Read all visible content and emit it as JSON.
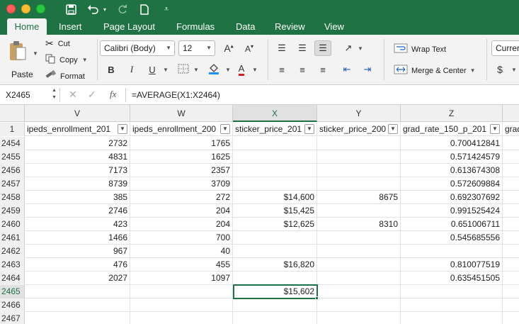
{
  "ribbon_tabs": [
    "Home",
    "Insert",
    "Page Layout",
    "Formulas",
    "Data",
    "Review",
    "View"
  ],
  "clipboard": {
    "paste": "Paste",
    "cut": "Cut",
    "copy": "Copy",
    "format": "Format"
  },
  "font": {
    "name": "Calibri (Body)",
    "size": "12"
  },
  "alignment": {
    "wrap_text": "Wrap Text",
    "merge_center": "Merge & Center"
  },
  "number": {
    "format": "Curren",
    "currency_symbol": "$"
  },
  "formula_bar": {
    "name_box": "X2465",
    "fx": "fx",
    "formula": "=AVERAGE(X1:X2464)"
  },
  "columns": [
    "V",
    "W",
    "X",
    "Y",
    "Z"
  ],
  "header_row": {
    "row_number": "1",
    "cells": [
      "ipeds_enrollment_201",
      "ipeds_enrollment_200",
      "sticker_price_201",
      "sticker_price_200",
      "grad_rate_150_p_201",
      "grad"
    ]
  },
  "rows": [
    {
      "num": "2454",
      "cells": [
        "2732",
        "1765",
        "",
        "",
        "0.700412841"
      ]
    },
    {
      "num": "2455",
      "cells": [
        "4831",
        "1625",
        "",
        "",
        "0.571424579"
      ]
    },
    {
      "num": "2456",
      "cells": [
        "7173",
        "2357",
        "",
        "",
        "0.613674308"
      ]
    },
    {
      "num": "2457",
      "cells": [
        "8739",
        "3709",
        "",
        "",
        "0.572609884"
      ]
    },
    {
      "num": "2458",
      "cells": [
        "385",
        "272",
        "$14,600",
        "8675",
        "0.692307692"
      ]
    },
    {
      "num": "2459",
      "cells": [
        "2746",
        "204",
        "$15,425",
        "",
        "0.991525424"
      ]
    },
    {
      "num": "2460",
      "cells": [
        "423",
        "204",
        "$12,625",
        "8310",
        "0.651006711"
      ]
    },
    {
      "num": "2461",
      "cells": [
        "1466",
        "700",
        "",
        "",
        "0.545685556"
      ]
    },
    {
      "num": "2462",
      "cells": [
        "967",
        "40",
        "",
        "",
        ""
      ]
    },
    {
      "num": "2463",
      "cells": [
        "476",
        "455",
        "$16,820",
        "",
        "0.810077519"
      ]
    },
    {
      "num": "2464",
      "cells": [
        "2027",
        "1097",
        "",
        "",
        "0.635451505"
      ]
    },
    {
      "num": "2465",
      "cells": [
        "",
        "",
        "$15,602",
        "",
        ""
      ]
    },
    {
      "num": "2466",
      "cells": [
        "",
        "",
        "",
        "",
        ""
      ]
    },
    {
      "num": "2467",
      "cells": [
        "",
        "",
        "",
        "",
        ""
      ]
    }
  ],
  "colors": {
    "excel_green": "#1f7244"
  }
}
